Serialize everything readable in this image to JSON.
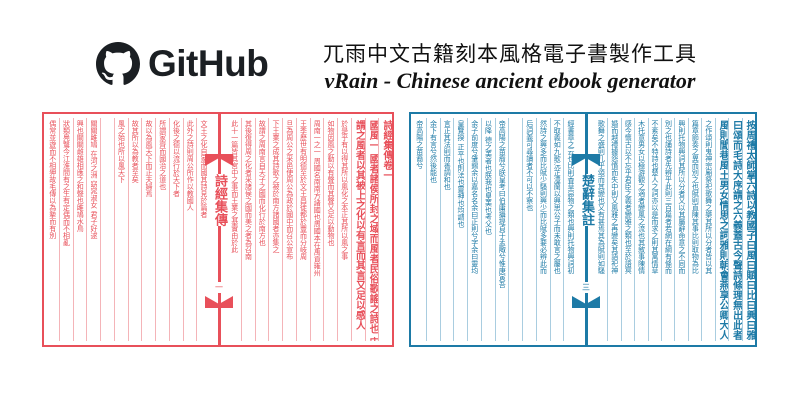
{
  "header": {
    "logo_text": "GitHub",
    "title": "兀雨中文古籍刻本風格電子書製作工具",
    "subtitle": "vRain - Chinese ancient ebook generator"
  },
  "colors": {
    "red_book": "#e8505a",
    "blue_book": "#1d7aa6",
    "text": "#1b1f23"
  },
  "books": [
    {
      "spine_title": "詩經集傳",
      "page_number": "一",
      "right_columns": [
        "詩經集傳卷一",
        "國風一 國者諸侯所封之域而風者民俗歌謠之詩也 宋 朱子 撰",
        "謂之風者以其被上之化以有言而其言又足以感人",
        "於是乎有以得其所以風化之本正其所以風之事",
        "如物因風之動以有聲而其聲又足以動物也",
        "周南一之一 周國名南南方諸國也周國本在禹貢雍州",
        "王季歷世有明德至於文王昌徙都於豐而分岐周",
        "旦為周公之采邑使周公為政於國中而召公宣布",
        "下王業之成其詩歌之被於南方諸國者亦集之",
        "故謂之周南言自天子之國而化行於南方也",
        "其後復得周之化者采諸侯之國而美之者為召南",
        "此十一篇皆其宮中之事而王業之基實由於此"
      ],
      "left_columns": [
        "文王之化自家而國其詩見於篇者",
        "此外之詩則周公所作以教國人",
        "化後之德以流行於天下者",
        "所謂家齊而國治之道也",
        "故以為風天下而正夫婦焉",
        "故其所以為教者至矣",
        "風之始也所以風天下",
        "",
        "關關雎鳩 在河之洲 窈窕淑女 君子好逑",
        "興也關關雌雄相應之和聲也雎鳩水鳥",
        "狀類鳧鷖今江淮間有之生有定偶而不相亂",
        "偶常並遊而不相狎故毛傳以為摯而有別"
      ]
    },
    {
      "spine_title": "楚辭集註",
      "page_number": "三",
      "right_columns": [
        "按周禮太師掌六詩以教國子曰風曰賦曰比曰興曰雅",
        "曰頌而毛詩大序謂之六義蓋古今聲詩條理無出此者",
        "風則閭巷風土男女情思之詞雅則朝會燕享公卿大人",
        "之作頌則鬼神宗廟祭祀歌舞之樂其所以分者皆以其",
        "篇章節奏之異而別之也賦則直陳其事比則取物為比",
        "興則托物興詞其所以分者又以其屬辭命意之不同而",
        "別之也誦詩者先辨乎此則三百篇者若網在綱有條而",
        "不紊矣不特詩也楚人之詞亦以是而求之則其寓情草",
        "木托意男女以極游觀之適者變風之流也其敘事陳情",
        "感今懷古以不忘乎君臣之義者變雅之類也至於語冥",
        "婚而越禮攄怨憤而失中則又風雅之再變矣其語祀神",
        "歌舞之盛則几乎頌而其變也又有甚焉其為賦則如騷"
      ],
      "left_columns": [
        "經書章之云也比則香草惡物之類也興則托物興詞初",
        "不取義如九歌沅芷澧蘭以興思公子而未敢言之屬也",
        "然詩之興多而比賦少騷則興少而比賦多要必辨此而",
        "后詞義可尋讀者不可以不察也",
        "",
        "帝高陽之苗裔兮朕皇考曰伯庸攝提貞于孟陬兮惟庚寅吾",
        "以降 德之美者也朕我也皇美也考父也",
        "余子前度兮肇錫余以嘉名名余曰正則兮字余曰靈均",
        "皇覽揆 正平也則法也靈神也均調也",
        "言正其法則而善調和也",
        "余下有言兮然後能也",
        "帝高陽之苗裔兮"
      ]
    }
  ]
}
